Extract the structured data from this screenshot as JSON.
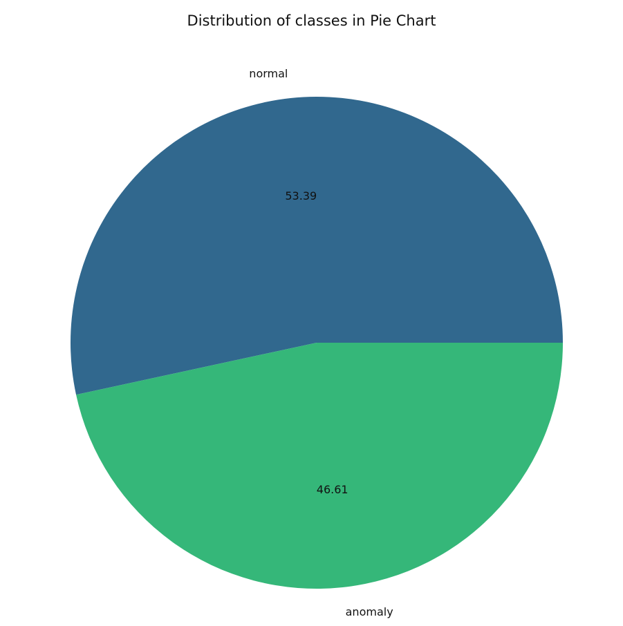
{
  "chart_data": {
    "type": "pie",
    "title": "Distribution of classes in Pie Chart",
    "categories": [
      "normal",
      "anomaly"
    ],
    "values": [
      53.39,
      46.61
    ],
    "value_labels": [
      "53.39",
      "46.61"
    ],
    "colors": [
      "#31688e",
      "#35b779"
    ],
    "start_angle_deg": 0,
    "direction": "counterclockwise",
    "legend": "none"
  }
}
